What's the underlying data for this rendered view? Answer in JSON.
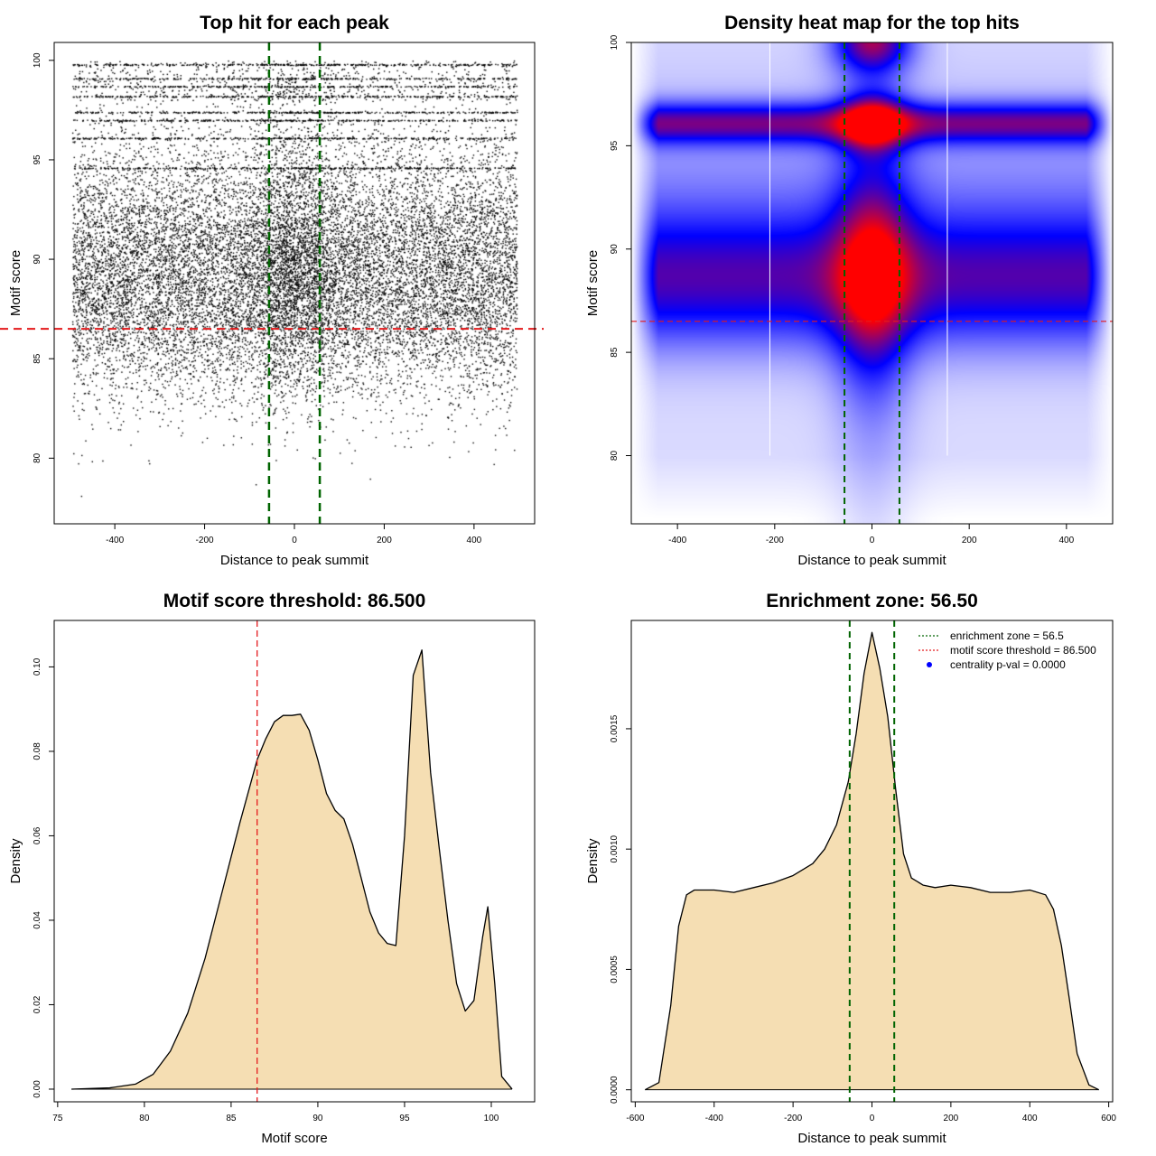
{
  "colors": {
    "threshold_line": "#e41a1c",
    "zone_line": "#006400",
    "density_fill": "#f5deb3",
    "points": "#000000",
    "heat_low": "#ffffff",
    "heat_mid": "#0000ff",
    "heat_high": "#ff0000",
    "centrality_marker": "#0000ff"
  },
  "chart_data": [
    {
      "id": "scatter",
      "type": "scatter",
      "title": "Top hit for each peak",
      "xlabel": "Distance to peak summit",
      "ylabel": "Motif score",
      "xlim": [
        -535,
        535
      ],
      "ylim": [
        76.7,
        100.9
      ],
      "xticks": [
        "-400",
        "-200",
        "0",
        "200",
        "400"
      ],
      "yticks": [
        "80",
        "85",
        "90",
        "95",
        "100"
      ],
      "threshold": 86.5,
      "zone": [
        -56.5,
        56.5
      ],
      "x_range": [
        -495,
        495
      ],
      "score_mode": 88.5,
      "dense_score_bands": [
        99.8,
        99.1,
        98.7,
        98.2,
        97.4,
        97.0,
        96.1,
        94.6
      ],
      "n_points_approx": 20000
    },
    {
      "id": "heatmap",
      "type": "heatmap",
      "title": "Density heat map for the top hits",
      "xlabel": "Distance to peak summit",
      "ylabel": "Motif score",
      "xlim": [
        -495,
        495
      ],
      "ylim": [
        76.7,
        100
      ],
      "xticks": [
        "-400",
        "-200",
        "0",
        "200",
        "400"
      ],
      "yticks": [
        "80",
        "85",
        "90",
        "95",
        "100"
      ],
      "threshold": 86.5,
      "zone": [
        -56.5,
        56.5
      ],
      "hot_spots": [
        {
          "x": 0,
          "y": 88.5,
          "level": "high"
        },
        {
          "x": 0,
          "y": 96.1,
          "level": "high"
        },
        {
          "x": 0,
          "y": 100.0,
          "level": "high"
        }
      ],
      "bands": [
        {
          "y": 96.1,
          "level": "medium"
        },
        {
          "y": 88.3,
          "level": "medium"
        }
      ]
    },
    {
      "id": "score_density",
      "type": "area",
      "title": "Motif score threshold: 86.500",
      "xlabel": "Motif score",
      "ylabel": "Density",
      "xlim": [
        74.8,
        102.5
      ],
      "ylim": [
        -0.003,
        0.111
      ],
      "xticks": [
        "75",
        "80",
        "85",
        "90",
        "95",
        "100"
      ],
      "yticks": [
        "0.00",
        "0.02",
        "0.04",
        "0.06",
        "0.08",
        "0.10"
      ],
      "threshold": 86.5,
      "x": [
        75.8,
        78,
        79.5,
        80.5,
        81.5,
        82.5,
        83.5,
        84.5,
        85.5,
        86.5,
        87.0,
        87.5,
        88.0,
        88.5,
        89.0,
        89.5,
        90.0,
        90.5,
        91.0,
        91.5,
        92.0,
        92.5,
        93.0,
        93.5,
        94.0,
        94.5,
        95.0,
        95.5,
        96.0,
        96.5,
        97.0,
        97.5,
        98.0,
        98.5,
        99.0,
        99.5,
        99.8,
        100.2,
        100.6,
        101.2
      ],
      "y": [
        0.0,
        0.0003,
        0.0012,
        0.0035,
        0.009,
        0.018,
        0.031,
        0.047,
        0.063,
        0.078,
        0.083,
        0.087,
        0.0885,
        0.0885,
        0.0888,
        0.085,
        0.078,
        0.07,
        0.066,
        0.064,
        0.058,
        0.05,
        0.042,
        0.037,
        0.0345,
        0.034,
        0.06,
        0.098,
        0.104,
        0.075,
        0.057,
        0.04,
        0.025,
        0.0185,
        0.021,
        0.036,
        0.0432,
        0.025,
        0.003,
        0.0
      ]
    },
    {
      "id": "position_density",
      "type": "area",
      "title": "Enrichment zone: 56.50",
      "xlabel": "Distance to peak summit",
      "ylabel": "Density",
      "xlim": [
        -610,
        610
      ],
      "ylim": [
        -5e-05,
        0.00195
      ],
      "xticks": [
        "-600",
        "-400",
        "-200",
        "0",
        "200",
        "400",
        "600"
      ],
      "yticks": [
        "0.0000",
        "0.0005",
        "0.0010",
        "0.0015"
      ],
      "zone": [
        -56.5,
        56.5
      ],
      "x": [
        -575,
        -540,
        -510,
        -490,
        -470,
        -450,
        -400,
        -350,
        -300,
        -250,
        -200,
        -150,
        -120,
        -90,
        -60,
        -40,
        -20,
        0,
        20,
        40,
        60,
        80,
        100,
        130,
        160,
        200,
        250,
        300,
        350,
        400,
        440,
        460,
        480,
        500,
        520,
        550,
        575
      ],
      "y": [
        0.0,
        3e-05,
        0.00035,
        0.00068,
        0.00081,
        0.00083,
        0.00083,
        0.00082,
        0.00084,
        0.00086,
        0.00089,
        0.00094,
        0.001,
        0.0011,
        0.00128,
        0.00148,
        0.00173,
        0.0019,
        0.00175,
        0.00155,
        0.00125,
        0.00098,
        0.00088,
        0.00085,
        0.00084,
        0.00085,
        0.00084,
        0.00082,
        0.00082,
        0.00083,
        0.00081,
        0.00075,
        0.0006,
        0.00038,
        0.00015,
        2e-05,
        0.0
      ]
    }
  ],
  "legend": {
    "items": [
      {
        "label": "enrichment zone = 56.5",
        "style": "dotted",
        "color": "#006400"
      },
      {
        "label": "motif score threshold = 86.500",
        "style": "dotted",
        "color": "#e41a1c"
      },
      {
        "label": "centrality p-val = 0.0000",
        "style": "point",
        "color": "#0000ff"
      }
    ]
  }
}
